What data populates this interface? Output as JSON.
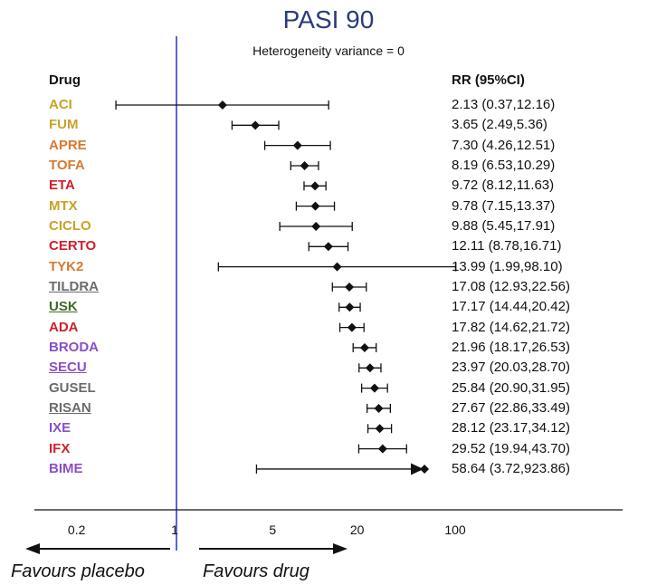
{
  "chart_data": {
    "type": "forest",
    "title": "PASI 90",
    "subtitle": "Heterogeneity variance = 0",
    "column_headers": {
      "drug": "Drug",
      "rr": "RR (95%CI)"
    },
    "x_scale": "log",
    "x_ticks": [
      "0.2",
      "1",
      "5",
      "20",
      "100"
    ],
    "x_tick_values": [
      0.2,
      1,
      5,
      20,
      100
    ],
    "reference_line": 1,
    "direction_labels": {
      "left": "Favours placebo",
      "right": "Favours drug"
    },
    "rows": [
      {
        "drug": "ACI",
        "color": "#c9a227",
        "underline": false,
        "rr": 2.13,
        "lo": 0.37,
        "hi": 12.16,
        "text": "2.13 (0.37,12.16)"
      },
      {
        "drug": "FUM",
        "color": "#c9a227",
        "underline": false,
        "rr": 3.65,
        "lo": 2.49,
        "hi": 5.36,
        "text": "3.65 (2.49,5.36)"
      },
      {
        "drug": "APRE",
        "color": "#d9782d",
        "underline": false,
        "rr": 7.3,
        "lo": 4.26,
        "hi": 12.51,
        "text": "7.30 (4.26,12.51)"
      },
      {
        "drug": "TOFA",
        "color": "#d9782d",
        "underline": false,
        "rr": 8.19,
        "lo": 6.53,
        "hi": 10.29,
        "text": "8.19 (6.53,10.29)"
      },
      {
        "drug": "ETA",
        "color": "#d0202a",
        "underline": false,
        "rr": 9.72,
        "lo": 8.12,
        "hi": 11.63,
        "text": "9.72 (8.12,11.63)"
      },
      {
        "drug": "MTX",
        "color": "#c9a227",
        "underline": false,
        "rr": 9.78,
        "lo": 7.15,
        "hi": 13.37,
        "text": "9.78 (7.15,13.37)"
      },
      {
        "drug": "CICLO",
        "color": "#c9a227",
        "underline": false,
        "rr": 9.88,
        "lo": 5.45,
        "hi": 17.91,
        "text": "9.88 (5.45,17.91)"
      },
      {
        "drug": "CERTO",
        "color": "#d0202a",
        "underline": false,
        "rr": 12.11,
        "lo": 8.78,
        "hi": 16.71,
        "text": "12.11 (8.78,16.71)"
      },
      {
        "drug": "TYK2",
        "color": "#d9782d",
        "underline": false,
        "rr": 13.99,
        "lo": 1.99,
        "hi": 98.1,
        "text": "13.99 (1.99,98.10)"
      },
      {
        "drug": "TILDRA",
        "color": "#6b6b6b",
        "underline": true,
        "rr": 17.08,
        "lo": 12.93,
        "hi": 22.56,
        "text": "17.08 (12.93,22.56)"
      },
      {
        "drug": "USK",
        "color": "#3d6b2a",
        "underline": true,
        "rr": 17.17,
        "lo": 14.44,
        "hi": 20.42,
        "text": "17.17 (14.44,20.42)"
      },
      {
        "drug": "ADA",
        "color": "#d0202a",
        "underline": false,
        "rr": 17.82,
        "lo": 14.62,
        "hi": 21.72,
        "text": "17.82 (14.62,21.72)"
      },
      {
        "drug": "BRODA",
        "color": "#8a4fc4",
        "underline": false,
        "rr": 21.96,
        "lo": 18.17,
        "hi": 26.53,
        "text": "21.96 (18.17,26.53)"
      },
      {
        "drug": "SECU",
        "color": "#8a4fc4",
        "underline": true,
        "rr": 23.97,
        "lo": 20.03,
        "hi": 28.7,
        "text": "23.97 (20.03,28.70)"
      },
      {
        "drug": "GUSEL",
        "color": "#6b6b6b",
        "underline": false,
        "rr": 25.84,
        "lo": 20.9,
        "hi": 31.95,
        "text": "25.84 (20.90,31.95)"
      },
      {
        "drug": "RISAN",
        "color": "#6b6b6b",
        "underline": true,
        "rr": 27.67,
        "lo": 22.86,
        "hi": 33.49,
        "text": "27.67 (22.86,33.49)"
      },
      {
        "drug": "IXE",
        "color": "#8a4fc4",
        "underline": false,
        "rr": 28.12,
        "lo": 23.17,
        "hi": 34.12,
        "text": "28.12 (23.17,34.12)"
      },
      {
        "drug": "IFX",
        "color": "#d0202a",
        "underline": false,
        "rr": 29.52,
        "lo": 19.94,
        "hi": 43.7,
        "text": "29.52 (19.94,43.70)"
      },
      {
        "drug": "BIME",
        "color": "#8a4fc4",
        "underline": false,
        "rr": 58.64,
        "lo": 3.72,
        "hi": 923.86,
        "text": "58.64 (3.72,923.86)",
        "clipped_high": true
      }
    ]
  }
}
